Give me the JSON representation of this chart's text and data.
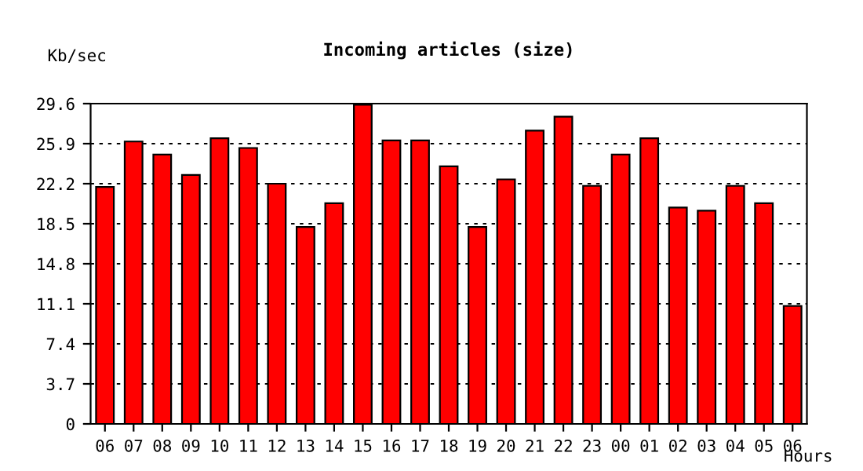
{
  "chart_data": {
    "type": "bar",
    "title": "Incoming articles (size)",
    "ylabel": "Kb/sec",
    "xlabel": "Hours",
    "categories": [
      "06",
      "07",
      "08",
      "09",
      "10",
      "11",
      "12",
      "13",
      "14",
      "15",
      "16",
      "17",
      "18",
      "19",
      "20",
      "21",
      "22",
      "23",
      "00",
      "01",
      "02",
      "03",
      "04",
      "05",
      "06"
    ],
    "values": [
      21.9,
      26.1,
      24.9,
      23.0,
      26.4,
      25.5,
      22.2,
      18.2,
      20.4,
      29.5,
      26.2,
      26.2,
      23.8,
      18.2,
      22.6,
      27.1,
      28.4,
      22.0,
      24.9,
      26.4,
      20.0,
      19.7,
      22.0,
      20.4,
      10.9
    ],
    "color": "#ff0000",
    "ylim": [
      0,
      29.6
    ],
    "yticks": [
      0,
      3.7,
      7.4,
      11.1,
      14.8,
      18.5,
      22.2,
      25.9,
      29.6
    ],
    "grid": "y"
  }
}
